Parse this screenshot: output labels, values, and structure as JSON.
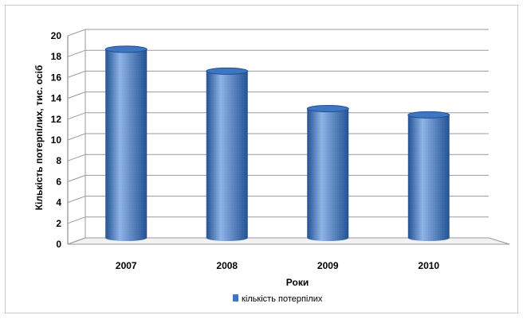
{
  "chart_data": {
    "type": "bar",
    "style": "3d-cylinder",
    "categories": [
      "2007",
      "2008",
      "2009",
      "2010"
    ],
    "series": [
      {
        "name": "кількість потерпілих",
        "values": [
          18.1,
          16.0,
          12.4,
          11.8
        ]
      }
    ],
    "xlabel": "Роки",
    "ylabel": "Кількість потерпілих, тис. осіб",
    "ylim": [
      0,
      20
    ],
    "yticks": [
      0,
      2,
      4,
      6,
      8,
      10,
      12,
      14,
      16,
      18,
      20
    ],
    "grid": true,
    "legend_position": "bottom",
    "colors": {
      "bar": "#3f76c2",
      "bar_dark": "#1f4f92",
      "bar_light": "#8db2e6",
      "grid": "#9a9a9a"
    }
  }
}
